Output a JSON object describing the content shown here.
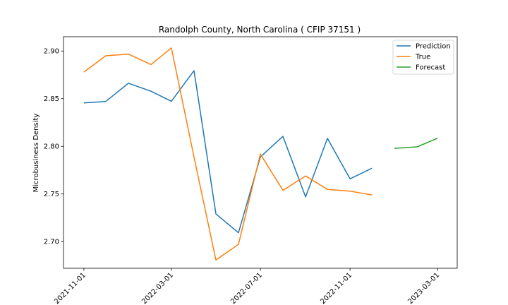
{
  "chart_data": {
    "type": "line",
    "title": "Randolph County, North Carolina ( CFIP 37151 )",
    "xlabel": "",
    "ylabel": "Microbusiness Density",
    "x_axis": {
      "type": "date",
      "range": [
        "2021-10-04",
        "2023-03-28"
      ],
      "ticks": [
        "2021-11-01",
        "2022-03-01",
        "2022-07-01",
        "2022-11-01",
        "2023-03-01"
      ]
    },
    "y_axis": {
      "range": [
        2.672,
        2.915
      ],
      "ticks": [
        "2.70",
        "2.75",
        "2.80",
        "2.85",
        "2.90"
      ]
    },
    "grid": false,
    "legend_position": "top-right",
    "series": [
      {
        "name": "Prediction",
        "color": "#1f77b4",
        "x": [
          "2021-11-01",
          "2021-12-01",
          "2022-01-01",
          "2022-02-01",
          "2022-03-01",
          "2022-04-01",
          "2022-05-01",
          "2022-06-01",
          "2022-07-01",
          "2022-08-01",
          "2022-09-01",
          "2022-10-01",
          "2022-11-01",
          "2022-12-01"
        ],
        "values": [
          2.8455,
          2.8471,
          2.8662,
          2.8578,
          2.8473,
          2.8794,
          2.7291,
          2.7093,
          2.7888,
          2.8104,
          2.7469,
          2.8083,
          2.7659,
          2.777
        ]
      },
      {
        "name": "True",
        "color": "#ff7f0e",
        "x": [
          "2021-11-01",
          "2021-12-01",
          "2022-01-01",
          "2022-02-01",
          "2022-03-01",
          "2022-04-01",
          "2022-05-01",
          "2022-06-01",
          "2022-07-01",
          "2022-08-01",
          "2022-09-01",
          "2022-10-01",
          "2022-11-01",
          "2022-12-01"
        ],
        "values": [
          2.8779,
          2.895,
          2.8968,
          2.8858,
          2.9032,
          2.7887,
          2.6807,
          2.6971,
          2.7919,
          2.7538,
          2.7689,
          2.7548,
          2.7529,
          2.749
        ]
      },
      {
        "name": "Forecast",
        "color": "#2ca02c",
        "x": [
          "2023-01-01",
          "2023-02-01",
          "2023-03-01"
        ],
        "values": [
          2.7979,
          2.7994,
          2.8085
        ]
      }
    ]
  }
}
